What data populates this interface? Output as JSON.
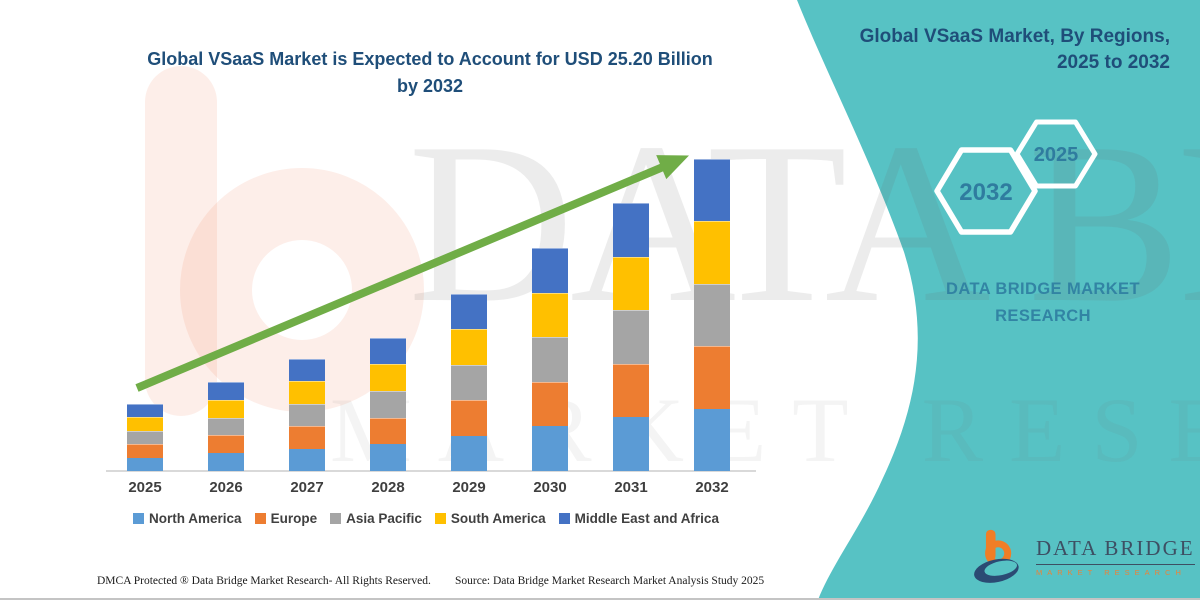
{
  "title": {
    "line1": "Global VSaaS Market is Expected to Account for USD 25.20 Billion",
    "line2": "by 2032"
  },
  "side_panel": {
    "heading_line1": "Global VSaaS Market, By Regions,",
    "heading_line2": "2025 to 2032",
    "hexagon_back_label": "2025",
    "hexagon_front_label": "2032",
    "brand_line1": "DATA BRIDGE MARKET",
    "brand_line2": "RESEARCH",
    "logo_title": "DATA BRIDGE",
    "logo_subtitle": "MARKET RESEARCH"
  },
  "watermarks": {
    "big_text": "DATA BRIDGE",
    "sub_text": "MARKET RESEARCH"
  },
  "footer": {
    "left": "DMCA Protected ® Data Bridge Market Research-  All Rights Reserved.",
    "right": "Source: Data Bridge Market Research  Market Analysis Study 2025"
  },
  "colors": {
    "panel_teal": "#57C2C4",
    "heading_blue": "#1F4E79",
    "arrow_green": "#70AD47",
    "hexagon_label": "#2F7C9F",
    "logo_navy": "#2B4A73",
    "logo_orange": "#F07E26"
  },
  "chart_data": {
    "type": "bar",
    "stacked": true,
    "title": "Global VSaaS Market is Expected to Account for USD 25.20 Billion by 2032",
    "unit": "USD Billion",
    "categories": [
      "2025",
      "2026",
      "2027",
      "2028",
      "2029",
      "2030",
      "2031",
      "2032"
    ],
    "series": [
      {
        "name": "North America",
        "color": "#5B9BD5",
        "values": [
          1.08,
          1.44,
          1.81,
          2.16,
          2.86,
          3.6,
          4.33,
          5.04
        ]
      },
      {
        "name": "Europe",
        "color": "#ED7D31",
        "values": [
          1.08,
          1.44,
          1.81,
          2.16,
          2.86,
          3.6,
          4.33,
          5.04
        ]
      },
      {
        "name": "Asia Pacific",
        "color": "#A5A5A5",
        "values": [
          1.08,
          1.44,
          1.81,
          2.16,
          2.86,
          3.6,
          4.33,
          5.04
        ]
      },
      {
        "name": "South America",
        "color": "#FFC000",
        "values": [
          1.08,
          1.44,
          1.81,
          2.16,
          2.86,
          3.6,
          4.33,
          5.04
        ]
      },
      {
        "name": "Middle East and Africa",
        "color": "#4472C4",
        "values": [
          1.08,
          1.44,
          1.81,
          2.16,
          2.86,
          3.6,
          4.33,
          5.04
        ]
      }
    ],
    "totals": [
      5.4,
      7.2,
      9.05,
      10.8,
      14.3,
      18.0,
      21.65,
      25.2
    ],
    "ylim": [
      0,
      26
    ],
    "y_axis_visible": false,
    "gridlines": false,
    "legend_position": "bottom",
    "annotation": "green growth trend arrow from 2025 toward 2032",
    "note": "Only the 2032 total (USD 25.20 Billion) is stated in the image; other totals and the equal regional splits are estimated from bar heights."
  }
}
